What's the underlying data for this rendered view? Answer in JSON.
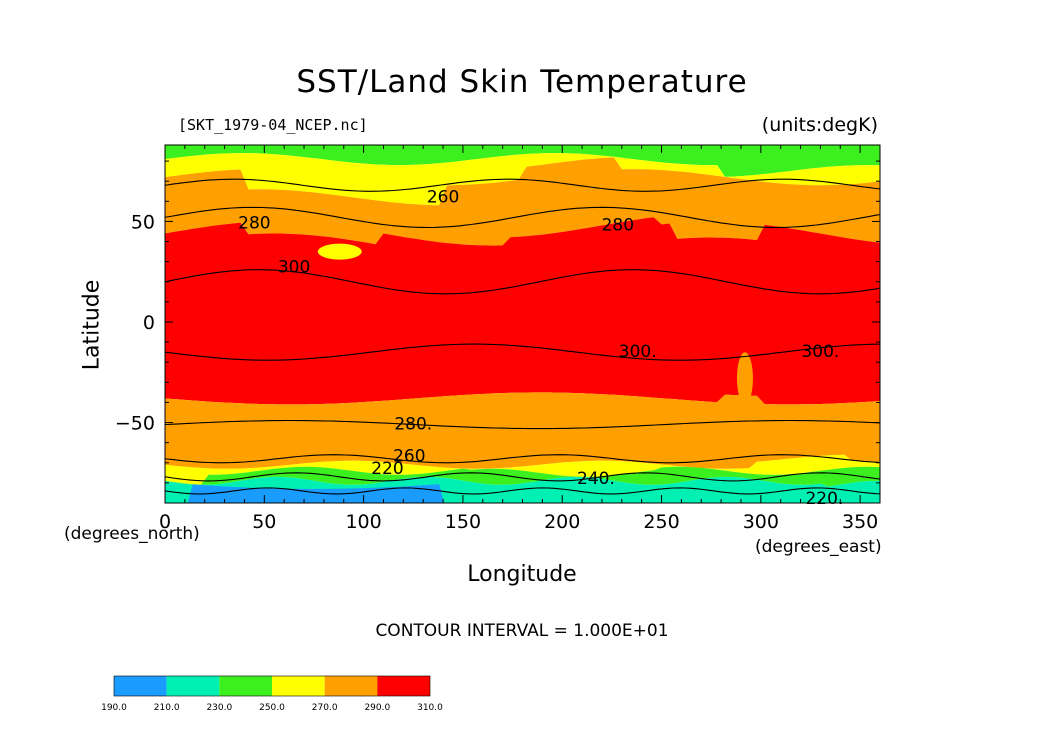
{
  "chart_data": {
    "type": "heatmap",
    "title": "SST/Land Skin Temperature",
    "file_label": "[SKT_1979-04_NCEP.nc]",
    "units_label": "(units:degK)",
    "xlabel": "Longitude",
    "ylabel": "Latitude",
    "xlabel_unit": "(degrees_east)",
    "ylabel_unit": "(degrees_north)",
    "xlim": [
      0,
      360
    ],
    "ylim": [
      -90,
      88
    ],
    "x_ticks": [
      "0",
      "50",
      "100",
      "150",
      "200",
      "250",
      "300",
      "350"
    ],
    "y_ticks": [
      "50",
      "0",
      "−50"
    ],
    "x_tick_values": [
      0,
      50,
      100,
      150,
      200,
      250,
      300,
      350
    ],
    "y_tick_values": [
      50,
      0,
      -50
    ],
    "contour_interval": "CONTOUR INTERVAL = 1.000E+01",
    "color_levels": [
      190,
      210,
      230,
      250,
      270,
      290,
      310
    ],
    "colorbar_labels": [
      "190.0",
      "210.0",
      "230.0",
      "250.0",
      "270.0",
      "290.0",
      "310.0"
    ],
    "band_colors": [
      "#1a9cff",
      "#00f0b4",
      "#3cf020",
      "#ffff00",
      "#ff9f00",
      "#ff0000"
    ],
    "contour_labels": [
      {
        "text": "260",
        "lon": 140,
        "lat": 62
      },
      {
        "text": "280",
        "lon": 45,
        "lat": 49
      },
      {
        "text": "280",
        "lon": 228,
        "lat": 48
      },
      {
        "text": "300",
        "lon": 65,
        "lat": 27
      },
      {
        "text": "300.",
        "lon": 238,
        "lat": -15
      },
      {
        "text": "300.",
        "lon": 330,
        "lat": -15
      },
      {
        "text": "280.",
        "lon": 125,
        "lat": -51
      },
      {
        "text": "260",
        "lon": 123,
        "lat": -67
      },
      {
        "text": "220",
        "lon": 112,
        "lat": -73
      },
      {
        "text": "240.",
        "lon": 217,
        "lat": -78
      },
      {
        "text": "220.",
        "lon": 332,
        "lat": -88
      }
    ]
  }
}
